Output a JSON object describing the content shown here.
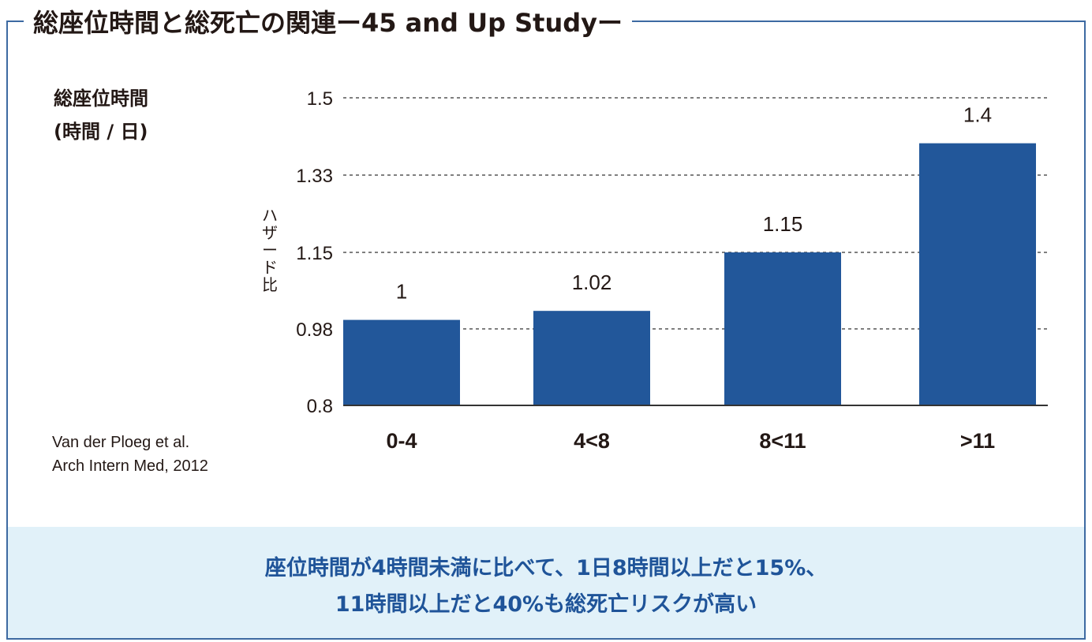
{
  "title": "総座位時間と総死亡の関連ー45 and Up Studyー",
  "legend_title_line1": "総座位時間",
  "legend_title_line2": "(時間 / 日)",
  "source_line1": "Van der Ploeg et al.",
  "source_line2": "Arch Intern Med, 2012",
  "message_line1": "座位時間が4時間未満に比べて、1日8時間以上だと15%、",
  "message_line2": "11時間以上だと40%も総死亡リスクが高い",
  "colors": {
    "bar": "#22579a",
    "frame": "#3d6aa2",
    "band": "#e1f1f9",
    "message": "#1f5499"
  },
  "chart_data": {
    "type": "bar",
    "title": "総座位時間と総死亡の関連ー45 and Up Studyー",
    "xlabel": "総座位時間 (時間 / 日)",
    "ylabel": "ハザード比",
    "categories": [
      "0-4",
      "4<8",
      "8<11",
      ">11"
    ],
    "values": [
      1,
      1.02,
      1.15,
      1.4
    ],
    "data_labels": [
      "1",
      "1.02",
      "1.15",
      "1.4"
    ],
    "yticks": [
      0.8,
      0.98,
      1.15,
      1.33,
      1.5
    ],
    "ytick_labels": [
      "0.8",
      "0.98",
      "1.15",
      "1.33",
      "1.5"
    ],
    "ylim": [
      0.8,
      1.5
    ],
    "grid": "horizontal dashed"
  }
}
